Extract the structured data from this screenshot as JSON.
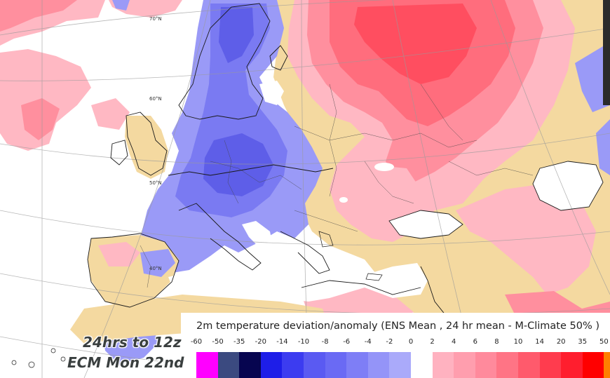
{
  "legend": {
    "title": "2m temperature deviation/anomaly (ENS Mean , 24 hr mean - M-Climate 50% )",
    "ticks": [
      "-60",
      "-50",
      "-35",
      "-20",
      "-14",
      "-10",
      "-8",
      "-6",
      "-4",
      "-2",
      "0",
      "2",
      "4",
      "6",
      "8",
      "10",
      "14",
      "20",
      "35",
      "50"
    ],
    "negative_colors": [
      "#ff00ff",
      "#3b4a80",
      "#070550",
      "#1e1ee8",
      "#3c3cf0",
      "#5a5af2",
      "#6a6af4",
      "#7e7ef6",
      "#9494f8",
      "#aaaafa"
    ],
    "positive_colors": [
      "#ffb2c0",
      "#ff9eae",
      "#ff8a9c",
      "#ff7485",
      "#ff5a6c",
      "#ff3c4e",
      "#ff1e2e",
      "#ff0000",
      "#ff7f00"
    ]
  },
  "caption": {
    "line1": "24hrs to 12z",
    "line2": "ECM Mon 22nd"
  },
  "graticule_labels": [
    "70°N",
    "60°N",
    "50°N",
    "40°N"
  ],
  "map_colors": {
    "sea": "#ffffff",
    "neutral": "#f4d9a0",
    "cold_light": "#9a9af7",
    "cold_mid": "#7a7af2",
    "cold_deep": "#5e5ee8",
    "warm_light": "#ffb8c3",
    "warm_mid": "#ff8f9e",
    "warm_deep": "#ff6d7d",
    "warm_core": "#ff4e60",
    "coastline": "#1a1a1a"
  }
}
